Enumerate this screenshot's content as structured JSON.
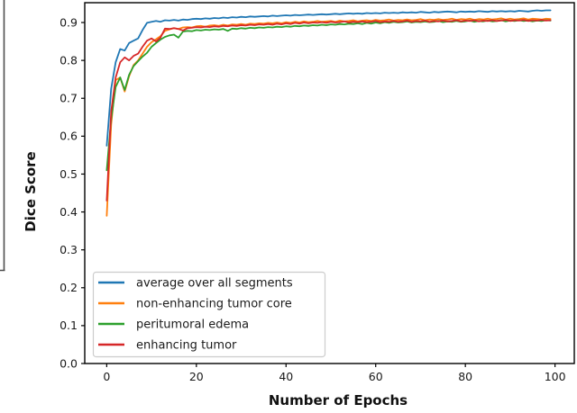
{
  "figure": {
    "type_note": "line chart of segmentation Dice scores during training"
  },
  "chart_data": {
    "type": "line",
    "title": "",
    "xlabel": "Number of Epochs",
    "ylabel": "Dice Score",
    "xlim": [
      -4.9,
      104.3
    ],
    "ylim": [
      0,
      0.9523
    ],
    "xticks": [
      0,
      20,
      40,
      60,
      80,
      100
    ],
    "xtick_labels": [
      "0",
      "20",
      "40",
      "60",
      "80",
      "100"
    ],
    "yticks": [
      0,
      0.1,
      0.2,
      0.3,
      0.4,
      0.5,
      0.6,
      0.7,
      0.8,
      0.9
    ],
    "ytick_labels": [
      "0.0",
      "0.1",
      "0.2",
      "0.3",
      "0.4",
      "0.5",
      "0.6",
      "0.7",
      "0.8",
      "0.9"
    ],
    "grid": false,
    "legend_position": "lower left",
    "spine_color": "#000000",
    "x": [
      0,
      1,
      2,
      3,
      4,
      5,
      6,
      7,
      8,
      9,
      10,
      11,
      12,
      13,
      14,
      15,
      16,
      17,
      18,
      19,
      20,
      21,
      22,
      23,
      24,
      25,
      26,
      27,
      28,
      29,
      30,
      31,
      32,
      33,
      34,
      35,
      36,
      37,
      38,
      39,
      40,
      41,
      42,
      43,
      44,
      45,
      46,
      47,
      48,
      49,
      50,
      51,
      52,
      53,
      54,
      55,
      56,
      57,
      58,
      59,
      60,
      61,
      62,
      63,
      64,
      65,
      66,
      67,
      68,
      69,
      70,
      71,
      72,
      73,
      74,
      75,
      76,
      77,
      78,
      79,
      80,
      81,
      82,
      83,
      84,
      85,
      86,
      87,
      88,
      89,
      90,
      91,
      92,
      93,
      94,
      95,
      96,
      97,
      98,
      99
    ],
    "series": [
      {
        "name": "average over all segments",
        "slug": "average-over-all-segments",
        "color": "#1f77b4",
        "values": [
          0.575,
          0.725,
          0.795,
          0.83,
          0.826,
          0.846,
          0.852,
          0.858,
          0.88,
          0.899,
          0.902,
          0.904,
          0.902,
          0.906,
          0.905,
          0.907,
          0.905,
          0.908,
          0.907,
          0.909,
          0.91,
          0.909,
          0.911,
          0.91,
          0.912,
          0.911,
          0.913,
          0.912,
          0.914,
          0.913,
          0.915,
          0.914,
          0.916,
          0.915,
          0.916,
          0.917,
          0.916,
          0.918,
          0.917,
          0.918,
          0.919,
          0.918,
          0.92,
          0.919,
          0.92,
          0.921,
          0.92,
          0.921,
          0.922,
          0.921,
          0.922,
          0.923,
          0.922,
          0.923,
          0.924,
          0.923,
          0.924,
          0.923,
          0.925,
          0.924,
          0.925,
          0.924,
          0.926,
          0.925,
          0.926,
          0.925,
          0.927,
          0.926,
          0.927,
          0.926,
          0.928,
          0.927,
          0.926,
          0.928,
          0.927,
          0.928,
          0.929,
          0.928,
          0.927,
          0.929,
          0.928,
          0.929,
          0.928,
          0.93,
          0.929,
          0.928,
          0.93,
          0.929,
          0.93,
          0.929,
          0.93,
          0.929,
          0.931,
          0.93,
          0.929,
          0.931,
          0.932,
          0.931,
          0.932,
          0.932
        ]
      },
      {
        "name": "non-enhancing tumor core",
        "slug": "non-enhancing-tumor-core",
        "color": "#ff7f0e",
        "values": [
          0.39,
          0.63,
          0.748,
          0.755,
          0.718,
          0.758,
          0.788,
          0.8,
          0.818,
          0.836,
          0.848,
          0.856,
          0.864,
          0.878,
          0.882,
          0.885,
          0.883,
          0.887,
          0.888,
          0.887,
          0.89,
          0.891,
          0.889,
          0.892,
          0.893,
          0.891,
          0.894,
          0.892,
          0.895,
          0.894,
          0.896,
          0.894,
          0.897,
          0.896,
          0.898,
          0.897,
          0.899,
          0.898,
          0.9,
          0.898,
          0.901,
          0.899,
          0.902,
          0.9,
          0.903,
          0.901,
          0.902,
          0.904,
          0.902,
          0.903,
          0.904,
          0.902,
          0.905,
          0.903,
          0.904,
          0.906,
          0.903,
          0.905,
          0.906,
          0.904,
          0.907,
          0.905,
          0.906,
          0.908,
          0.905,
          0.907,
          0.906,
          0.908,
          0.906,
          0.907,
          0.909,
          0.906,
          0.908,
          0.907,
          0.909,
          0.907,
          0.908,
          0.91,
          0.907,
          0.909,
          0.908,
          0.91,
          0.907,
          0.909,
          0.908,
          0.91,
          0.908,
          0.909,
          0.911,
          0.908,
          0.91,
          0.908,
          0.909,
          0.911,
          0.908,
          0.91,
          0.909,
          0.908,
          0.91,
          0.909
        ]
      },
      {
        "name": "peritumoral edema",
        "slug": "peritumoral-edema",
        "color": "#2ca02c",
        "values": [
          0.51,
          0.645,
          0.73,
          0.755,
          0.722,
          0.762,
          0.785,
          0.798,
          0.81,
          0.82,
          0.836,
          0.846,
          0.855,
          0.862,
          0.866,
          0.868,
          0.86,
          0.876,
          0.878,
          0.877,
          0.88,
          0.879,
          0.881,
          0.88,
          0.882,
          0.881,
          0.883,
          0.878,
          0.884,
          0.883,
          0.885,
          0.884,
          0.886,
          0.885,
          0.887,
          0.886,
          0.888,
          0.887,
          0.889,
          0.888,
          0.89,
          0.889,
          0.891,
          0.89,
          0.892,
          0.891,
          0.893,
          0.892,
          0.894,
          0.893,
          0.895,
          0.894,
          0.896,
          0.895,
          0.897,
          0.896,
          0.898,
          0.896,
          0.899,
          0.897,
          0.9,
          0.898,
          0.901,
          0.899,
          0.902,
          0.9,
          0.901,
          0.903,
          0.9,
          0.902,
          0.901,
          0.903,
          0.901,
          0.902,
          0.904,
          0.901,
          0.903,
          0.902,
          0.904,
          0.902,
          0.903,
          0.905,
          0.902,
          0.904,
          0.903,
          0.905,
          0.903,
          0.904,
          0.906,
          0.903,
          0.905,
          0.904,
          0.906,
          0.904,
          0.905,
          0.903,
          0.905,
          0.904,
          0.906,
          0.905
        ]
      },
      {
        "name": "enhancing tumor",
        "slug": "enhancing-tumor",
        "color": "#d62728",
        "values": [
          0.43,
          0.665,
          0.755,
          0.795,
          0.808,
          0.8,
          0.812,
          0.818,
          0.836,
          0.852,
          0.858,
          0.85,
          0.86,
          0.884,
          0.883,
          0.885,
          0.883,
          0.879,
          0.885,
          0.886,
          0.888,
          0.887,
          0.889,
          0.888,
          0.89,
          0.889,
          0.891,
          0.89,
          0.892,
          0.891,
          0.893,
          0.892,
          0.894,
          0.893,
          0.895,
          0.894,
          0.896,
          0.894,
          0.897,
          0.895,
          0.898,
          0.896,
          0.899,
          0.897,
          0.9,
          0.898,
          0.9,
          0.899,
          0.901,
          0.899,
          0.902,
          0.9,
          0.901,
          0.903,
          0.9,
          0.902,
          0.901,
          0.903,
          0.901,
          0.902,
          0.904,
          0.901,
          0.903,
          0.902,
          0.904,
          0.902,
          0.903,
          0.905,
          0.902,
          0.904,
          0.903,
          0.905,
          0.902,
          0.904,
          0.903,
          0.905,
          0.903,
          0.904,
          0.906,
          0.903,
          0.905,
          0.904,
          0.906,
          0.903,
          0.905,
          0.904,
          0.906,
          0.904,
          0.905,
          0.907,
          0.904,
          0.906,
          0.905,
          0.907,
          0.904,
          0.906,
          0.905,
          0.907,
          0.905,
          0.906
        ]
      }
    ]
  }
}
